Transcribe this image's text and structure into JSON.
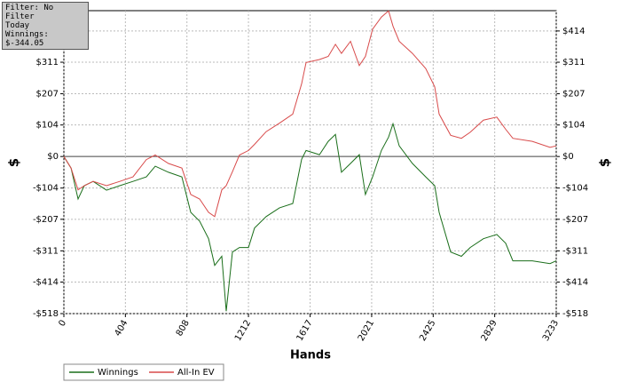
{
  "info": {
    "lines": [
      "Filter: No Filter",
      "Today",
      "Winnings: $-344.05"
    ]
  },
  "chart_data": {
    "type": "line",
    "x_label": "Hands",
    "y_label": "$",
    "y2_label": "$",
    "xlim": [
      0,
      3233
    ],
    "xticks": [
      0,
      404,
      808,
      1212,
      1617,
      2021,
      2425,
      2829,
      3233
    ],
    "ylim": [
      -518,
      481
    ],
    "yticks": [
      {
        "value": 414,
        "label": "$414"
      },
      {
        "value": 311,
        "label": "$311"
      },
      {
        "value": 207,
        "label": "$207"
      },
      {
        "value": 104,
        "label": "$104"
      },
      {
        "value": 0,
        "label": "$0"
      },
      {
        "value": -104,
        "label": "-$104"
      },
      {
        "value": -207,
        "label": "-$207"
      },
      {
        "value": -311,
        "label": "-$311"
      },
      {
        "value": -414,
        "label": "-$414"
      },
      {
        "value": -518,
        "label": "-$518"
      }
    ],
    "grid": true,
    "legend": "bottom-left",
    "x": [
      0,
      47,
      93,
      134,
      192,
      280,
      367,
      454,
      542,
      600,
      687,
      775,
      833,
      891,
      950,
      990,
      1037,
      1066,
      1107,
      1153,
      1212,
      1252,
      1328,
      1416,
      1503,
      1561,
      1590,
      1678,
      1736,
      1783,
      1823,
      1882,
      1940,
      1980,
      2027,
      2085,
      2132,
      2161,
      2202,
      2289,
      2376,
      2435,
      2464,
      2540,
      2610,
      2668,
      2755,
      2843,
      2901,
      2948,
      3076,
      3192,
      3233
    ],
    "series": [
      {
        "name": "Winnings",
        "color": "#1a6e1a",
        "values": [
          0,
          -38,
          -140,
          -96,
          -82,
          -111,
          -96,
          -82,
          -67,
          -32,
          -52,
          -67,
          -184,
          -213,
          -271,
          -359,
          -329,
          -510,
          -315,
          -300,
          -300,
          -236,
          -198,
          -169,
          -155,
          -9,
          20,
          6,
          50,
          73,
          -52,
          -23,
          6,
          -125,
          -67,
          20,
          64,
          108,
          35,
          -23,
          -67,
          -96,
          -184,
          -315,
          -329,
          -300,
          -271,
          -257,
          -286,
          -344,
          -344,
          -353,
          -344
        ]
      },
      {
        "name": "All-In EV",
        "color": "#d84a4a",
        "values": [
          0,
          -38,
          -110,
          -96,
          -82,
          -96,
          -82,
          -67,
          -10,
          5,
          -23,
          -38,
          -125,
          -140,
          -184,
          -198,
          -110,
          -96,
          -50,
          5,
          20,
          40,
          82,
          110,
          140,
          240,
          310,
          320,
          330,
          370,
          340,
          380,
          300,
          330,
          420,
          460,
          480,
          430,
          380,
          340,
          290,
          230,
          140,
          70,
          60,
          80,
          120,
          130,
          90,
          60,
          50,
          30,
          35
        ]
      }
    ]
  }
}
